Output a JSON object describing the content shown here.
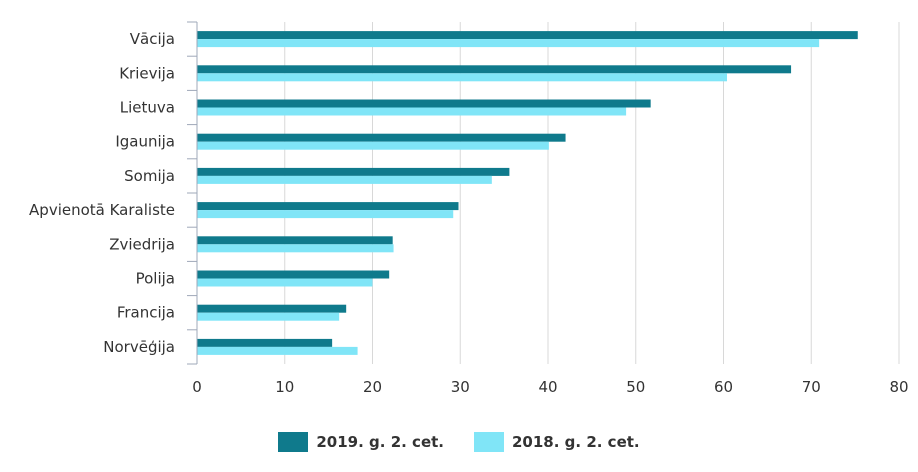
{
  "chart_data": {
    "type": "bar",
    "orientation": "horizontal",
    "categories": [
      "Vācija",
      "Krievija",
      "Lietuva",
      "Igaunija",
      "Somija",
      "Apvienotā Karaliste",
      "Zviedrija",
      "Polija",
      "Francija",
      "Norvēģija"
    ],
    "series": [
      {
        "name": "2019. g. 2. cet.",
        "color": "#0f7a8c",
        "values": [
          75.3,
          67.7,
          51.7,
          42.0,
          35.6,
          29.8,
          22.3,
          21.9,
          17.0,
          15.4
        ]
      },
      {
        "name": "2018. g. 2. cet.",
        "color": "#80e5f7",
        "values": [
          70.9,
          60.4,
          48.9,
          40.1,
          33.6,
          29.2,
          22.4,
          20.0,
          16.2,
          18.3
        ]
      }
    ],
    "xlim": [
      0,
      80
    ],
    "xticks": [
      0,
      10,
      20,
      30,
      40,
      50,
      60,
      70,
      80
    ],
    "grid": true,
    "legend_position": "bottom-center"
  }
}
